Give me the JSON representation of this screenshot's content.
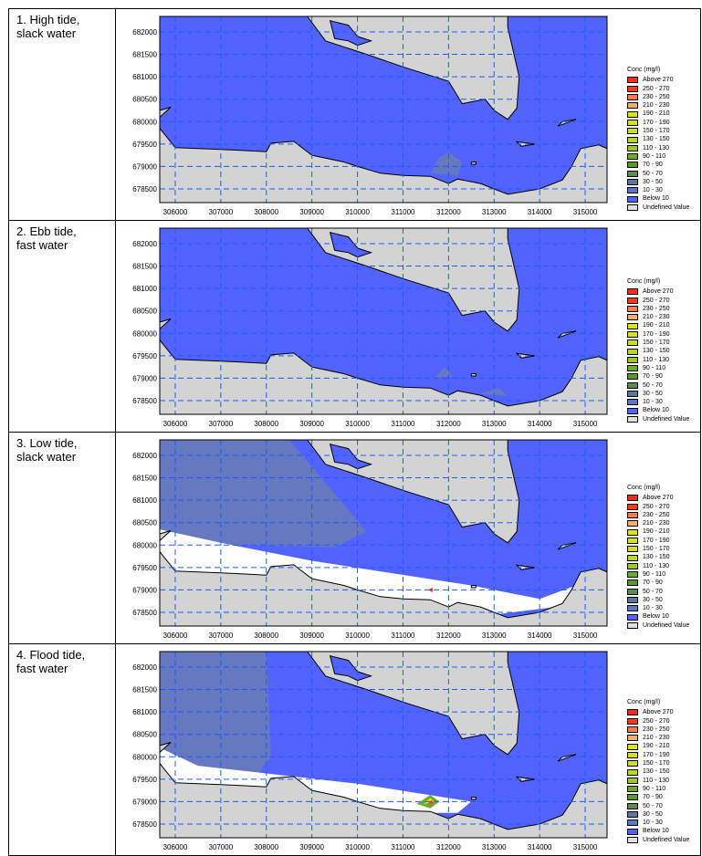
{
  "panels": [
    {
      "label": "1. High tide,\nslack water",
      "scenario": "high"
    },
    {
      "label": "2. Ebb tide,\nfast water",
      "scenario": "ebb"
    },
    {
      "label": "3. Low tide,\nslack water",
      "scenario": "low"
    },
    {
      "label": "4. Flood tide,\nfast water",
      "scenario": "flood"
    }
  ],
  "axes": {
    "x_ticks": [
      "306000",
      "307000",
      "308000",
      "309000",
      "310000",
      "311000",
      "312000",
      "313000",
      "314000",
      "315000"
    ],
    "y_ticks": [
      "682000",
      "681500",
      "681000",
      "680500",
      "680000",
      "679500",
      "679000",
      "678500"
    ]
  },
  "legend": {
    "title": "Conc (mg/l)",
    "items": [
      {
        "label": "Above 270",
        "color": "#ff2a1a"
      },
      {
        "label": "250 - 270",
        "color": "#ff3a1a"
      },
      {
        "label": "230 - 250",
        "color": "#ff7a50"
      },
      {
        "label": "210 - 230",
        "color": "#f0b070"
      },
      {
        "label": "190 - 210",
        "color": "#dde41a"
      },
      {
        "label": "170 - 190",
        "color": "#d8e020"
      },
      {
        "label": "150 - 170",
        "color": "#d0dc30"
      },
      {
        "label": "130 - 150",
        "color": "#b8d828"
      },
      {
        "label": "110 - 130",
        "color": "#9cc830"
      },
      {
        "label": "90 - 110",
        "color": "#6cac2a"
      },
      {
        "label": "70 -  90",
        "color": "#5a9a2c"
      },
      {
        "label": "50 -  70",
        "color": "#5f8a50"
      },
      {
        "label": "30 -  50",
        "color": "#6078a0"
      },
      {
        "label": "10 -  30",
        "color": "#5a78c8"
      },
      {
        "label": "Below  10",
        "color": "#5262fc"
      },
      {
        "label": "Undefined Value",
        "color": "#e0e0e0"
      }
    ]
  }
}
